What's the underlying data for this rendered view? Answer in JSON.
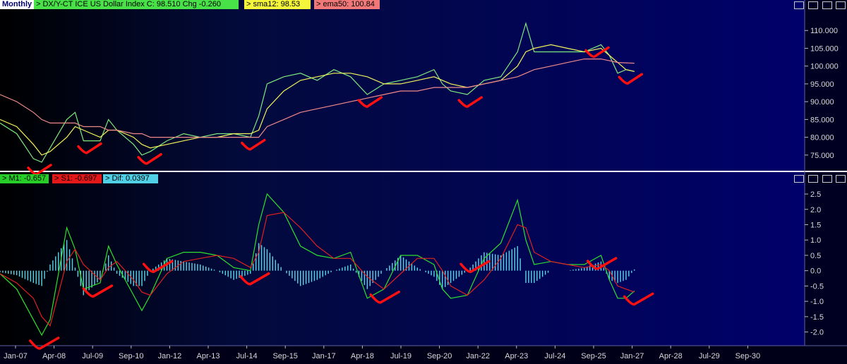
{
  "header": {
    "period": "Monthly",
    "symbol_label": "> DX/Y-CT  ICE US Dollar Index  C: 98.510  Chg -0.260",
    "sma_label": "> sma12: 98.53",
    "ema_label": "> ema50: 100.84"
  },
  "lower_header": {
    "m1_label": "> M1: -0.657",
    "s1_label": "> S1: -0.697",
    "dif_label": "> Dif: 0.0397"
  },
  "colors": {
    "background_top": "#010a36",
    "background_bottom": "#00003a",
    "price": "#7ee87e",
    "sma": "#f2f25a",
    "ema": "#f08a8a",
    "m1": "#2ee02e",
    "s1": "#e02020",
    "dif": "#5ad7e8",
    "annotation": "#ff1010",
    "axis_text": "#d8d8d8",
    "divider": "#ffffff"
  },
  "chart_data": [
    {
      "type": "line",
      "title": "DX/Y-CT ICE US Dollar Index",
      "y_axis_ticks": [
        "110.000",
        "105.000",
        "100.000",
        "95.000",
        "90.000",
        "85.000",
        "80.000",
        "75.000"
      ],
      "ylim": [
        71,
        115
      ],
      "x": [
        2007.0,
        2007.5,
        2008.0,
        2008.25,
        2008.5,
        2009.0,
        2009.25,
        2009.5,
        2010.0,
        2010.25,
        2010.5,
        2011.0,
        2011.25,
        2011.5,
        2012.0,
        2012.5,
        2013.0,
        2013.5,
        2014.0,
        2014.5,
        2014.75,
        2015.0,
        2015.5,
        2016.0,
        2016.5,
        2017.0,
        2017.5,
        2018.0,
        2018.5,
        2019.0,
        2019.5,
        2020.0,
        2020.25,
        2020.5,
        2021.0,
        2021.5,
        2022.0,
        2022.5,
        2022.75,
        2023.0,
        2023.5,
        2024.0,
        2024.5,
        2025.0,
        2025.25,
        2025.5,
        2025.75,
        2026.0
      ],
      "series": [
        {
          "name": "price",
          "values": [
            84,
            81,
            74,
            73,
            77,
            85,
            87,
            79,
            79,
            85,
            82,
            78,
            75,
            76,
            79,
            81,
            80,
            81,
            81,
            80,
            86,
            95,
            97,
            98,
            96,
            99,
            97,
            92,
            95,
            96,
            97,
            99,
            95,
            93,
            92,
            96,
            97,
            104,
            112,
            104,
            104,
            104,
            104,
            106,
            103,
            98,
            99,
            98.5
          ]
        },
        {
          "name": "sma12",
          "values": [
            85,
            83,
            78,
            75,
            76,
            80,
            83,
            82,
            80,
            82,
            82,
            80,
            78,
            77,
            78,
            79,
            80,
            80,
            81,
            81,
            82,
            88,
            93,
            96,
            97,
            98,
            98,
            97,
            95,
            95,
            96,
            97,
            96,
            95,
            94,
            95,
            96,
            100,
            104,
            105,
            106,
            105,
            104,
            105,
            103,
            101,
            99,
            98.5
          ]
        },
        {
          "name": "ema50",
          "values": [
            92,
            90,
            87,
            85,
            84,
            84,
            84,
            83,
            83,
            82,
            82,
            81,
            81,
            80,
            80,
            80,
            80,
            80,
            80,
            80,
            80,
            83,
            85,
            87,
            88,
            89,
            90,
            91,
            92,
            93,
            93,
            94,
            94,
            94,
            94,
            95,
            96,
            97,
            98,
            99,
            100,
            101,
            102,
            102,
            101.5,
            101,
            100.9,
            100.8
          ]
        }
      ]
    },
    {
      "type": "line",
      "title": "",
      "y_axis_ticks": [
        "2.5",
        "2.0",
        "1.5",
        "1.0",
        "0.5",
        "0.0",
        "-0.5",
        "-1.0",
        "-1.5",
        "-2.0"
      ],
      "ylim": [
        -2.4,
        2.8
      ],
      "x": [
        2007.0,
        2007.5,
        2008.0,
        2008.25,
        2008.5,
        2009.0,
        2009.25,
        2009.5,
        2010.0,
        2010.25,
        2010.5,
        2011.0,
        2011.25,
        2011.5,
        2012.0,
        2012.5,
        2013.0,
        2013.5,
        2014.0,
        2014.5,
        2014.75,
        2015.0,
        2015.5,
        2016.0,
        2016.5,
        2017.0,
        2017.5,
        2018.0,
        2018.5,
        2019.0,
        2019.5,
        2020.0,
        2020.25,
        2020.5,
        2021.0,
        2021.5,
        2022.0,
        2022.5,
        2022.75,
        2023.0,
        2023.5,
        2024.0,
        2024.5,
        2025.0,
        2025.25,
        2025.5,
        2025.75,
        2026.0
      ],
      "series": [
        {
          "name": "M1",
          "values": [
            -0.1,
            -0.6,
            -1.6,
            -2.1,
            -1.6,
            1.4,
            0.7,
            -0.6,
            -0.4,
            0.8,
            0.2,
            -0.8,
            -1.3,
            -0.8,
            0.4,
            0.6,
            0.6,
            0.5,
            0.1,
            0.0,
            1.5,
            2.5,
            1.9,
            0.8,
            0.5,
            0.4,
            0.6,
            -0.9,
            -0.6,
            0.5,
            0.5,
            0.2,
            -0.6,
            -0.9,
            -0.8,
            0.4,
            0.9,
            2.3,
            1.0,
            0.2,
            0.3,
            0.2,
            0.2,
            0.5,
            -0.3,
            -0.9,
            -0.9,
            -0.66
          ]
        },
        {
          "name": "S1",
          "values": [
            -0.1,
            -0.4,
            -0.9,
            -1.5,
            -1.8,
            0.3,
            0.7,
            0.2,
            -0.3,
            0.1,
            0.3,
            -0.3,
            -0.7,
            -0.8,
            -0.1,
            0.3,
            0.4,
            0.5,
            0.4,
            0.1,
            0.6,
            1.8,
            1.9,
            1.4,
            0.8,
            0.4,
            0.4,
            -0.2,
            -0.6,
            -0.1,
            0.4,
            0.4,
            0.0,
            -0.5,
            -0.8,
            -0.3,
            0.4,
            1.5,
            1.4,
            0.6,
            0.3,
            0.2,
            0.1,
            0.2,
            0.0,
            -0.5,
            -0.6,
            -0.7
          ]
        },
        {
          "name": "Dif",
          "values": [
            -0.05,
            -0.15,
            -0.4,
            -0.5,
            0.2,
            1.0,
            0.1,
            -0.8,
            -0.3,
            0.5,
            -0.1,
            -0.5,
            -0.5,
            0.0,
            0.4,
            0.3,
            0.2,
            0.0,
            -0.3,
            -0.1,
            0.9,
            0.7,
            0.0,
            -0.5,
            -0.3,
            0.0,
            0.2,
            -0.6,
            0.0,
            0.5,
            0.1,
            -0.2,
            -0.6,
            -0.4,
            0.0,
            0.6,
            0.5,
            0.8,
            -0.4,
            -0.4,
            0.0,
            0.0,
            0.1,
            0.3,
            -0.3,
            -0.4,
            -0.3,
            0.04
          ]
        }
      ]
    }
  ],
  "x_axis_labels": [
    "Jan-07",
    "Apr-08",
    "Jul-09",
    "Sep-10",
    "Jan-12",
    "Apr-13",
    "Jul-14",
    "Sep-15",
    "Jan-17",
    "Apr-18",
    "Jul-19",
    "Sep-20",
    "Jan-22",
    "Apr-23",
    "Jul-24",
    "Sep-25",
    "Jan-27",
    "Apr-28",
    "Jul-29",
    "Sep-30"
  ],
  "annotations": {
    "upper_bottoms_at_year": [
      2008.1,
      2009.6,
      2011.4,
      2014.5,
      2018.0,
      2021.0,
      2024.8,
      2025.8
    ],
    "lower_bottoms_at_year": [
      2008.2,
      2009.8,
      2011.6,
      2014.5,
      2018.4,
      2021.1,
      2024.9,
      2026.0
    ]
  }
}
